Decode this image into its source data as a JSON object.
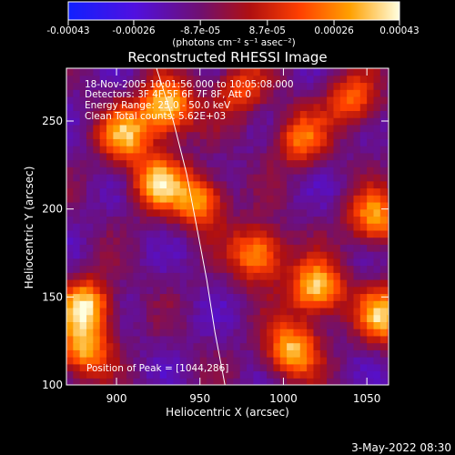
{
  "chart_data": {
    "type": "heatmap",
    "title": "Reconstructed RHESSI Image",
    "xlabel": "Heliocentric X (arcsec)",
    "ylabel": "Heliocentric Y (arcsec)",
    "x_range": [
      870,
      1063
    ],
    "y_range": [
      100,
      280
    ],
    "x_ticks": [
      900,
      950,
      1000,
      1050
    ],
    "y_ticks": [
      100,
      150,
      200,
      250
    ],
    "colorbar": {
      "units": "(photons cm⁻² s⁻¹ asec⁻²)",
      "range": [
        -0.00043,
        0.00043
      ],
      "tick_labels": [
        "-0.00043",
        "-0.00026",
        "-8.7e-05",
        "8.7e-05",
        "0.00026",
        "0.00043"
      ],
      "tick_values": [
        -0.00043,
        -0.00026,
        -8.7e-05,
        8.7e-05,
        0.00026,
        0.00043
      ]
    },
    "annotations": [
      "18-Nov-2005 10:01:56.000 to 10:05:08.000",
      "Detectors: 3F 4F 5F 6F 7F 8F, Att 0",
      "Energy Range: 25.0 - 50.0 keV",
      "Clean     Total counts: 5.62E+03"
    ],
    "peak_label": "Position of Peak = [1044,286]",
    "limb_curve": [
      {
        "x": 924,
        "y": 280
      },
      {
        "x": 934,
        "y": 250
      },
      {
        "x": 942,
        "y": 220
      },
      {
        "x": 948,
        "y": 190
      },
      {
        "x": 954,
        "y": 160
      },
      {
        "x": 959,
        "y": 130
      },
      {
        "x": 965,
        "y": 100
      }
    ],
    "bright_sources": [
      {
        "x": 930,
        "y": 258,
        "intensity": 0.00043
      },
      {
        "x": 905,
        "y": 242,
        "intensity": 0.0003
      },
      {
        "x": 925,
        "y": 215,
        "intensity": 0.00032
      },
      {
        "x": 950,
        "y": 205,
        "intensity": 0.0003
      },
      {
        "x": 1020,
        "y": 155,
        "intensity": 0.0004
      },
      {
        "x": 985,
        "y": 175,
        "intensity": 0.00034
      },
      {
        "x": 1055,
        "y": 195,
        "intensity": 0.0003
      },
      {
        "x": 1005,
        "y": 120,
        "intensity": 0.00035
      },
      {
        "x": 1060,
        "y": 140,
        "intensity": 0.00034
      },
      {
        "x": 882,
        "y": 145,
        "intensity": 0.00038
      },
      {
        "x": 880,
        "y": 120,
        "intensity": 0.0003
      },
      {
        "x": 1010,
        "y": 240,
        "intensity": 0.00022
      },
      {
        "x": 1042,
        "y": 262,
        "intensity": 0.00022
      },
      {
        "x": 975,
        "y": 268,
        "intensity": 0.00016
      }
    ],
    "grid": false
  },
  "footer": {
    "timestamp": "3-May-2022 08:30"
  }
}
